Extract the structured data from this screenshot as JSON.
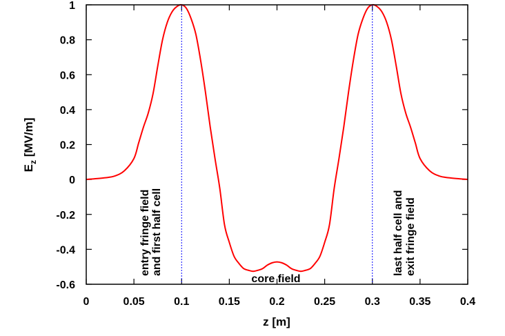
{
  "chart_data": {
    "type": "line",
    "xlabel": "z [m]",
    "ylabel_main": "E",
    "ylabel_sub": "z",
    "ylabel_rest": " [MV/m]",
    "xlim": [
      0,
      0.4
    ],
    "ylim": [
      -0.6,
      1
    ],
    "xticks": [
      "0",
      "0.05",
      "0.1",
      "0.15",
      "0.2",
      "0.25",
      "0.3",
      "0.35",
      "0.4"
    ],
    "xtick_values": [
      0,
      0.05,
      0.1,
      0.15,
      0.2,
      0.25,
      0.3,
      0.35,
      0.4
    ],
    "yticks": [
      "-0.6",
      "-0.4",
      "-0.2",
      "0",
      "0.2",
      "0.4",
      "0.6",
      "0.8",
      "1"
    ],
    "ytick_values": [
      -0.6,
      -0.4,
      -0.2,
      0,
      0.2,
      0.4,
      0.6,
      0.8,
      1
    ],
    "grid": false,
    "series": [
      {
        "color": "#ff0000",
        "x": [
          0,
          0.02,
          0.03,
          0.04,
          0.05,
          0.055,
          0.06,
          0.065,
          0.07,
          0.075,
          0.08,
          0.085,
          0.09,
          0.095,
          0.1,
          0.105,
          0.11,
          0.115,
          0.12,
          0.125,
          0.13,
          0.135,
          0.14,
          0.145,
          0.15,
          0.155,
          0.16,
          0.165,
          0.17,
          0.175,
          0.18,
          0.185,
          0.19,
          0.195,
          0.2,
          0.205,
          0.21,
          0.215,
          0.22,
          0.225,
          0.23,
          0.235,
          0.24,
          0.245,
          0.25,
          0.255,
          0.26,
          0.265,
          0.27,
          0.275,
          0.28,
          0.285,
          0.29,
          0.295,
          0.3,
          0.305,
          0.31,
          0.315,
          0.32,
          0.325,
          0.33,
          0.335,
          0.34,
          0.345,
          0.35,
          0.36,
          0.37,
          0.38,
          0.4
        ],
        "y": [
          0,
          0.01,
          0.02,
          0.05,
          0.12,
          0.21,
          0.3,
          0.38,
          0.49,
          0.65,
          0.8,
          0.9,
          0.96,
          0.99,
          1.0,
          0.98,
          0.92,
          0.83,
          0.68,
          0.5,
          0.3,
          0.12,
          -0.05,
          -0.26,
          -0.36,
          -0.44,
          -0.48,
          -0.51,
          -0.52,
          -0.526,
          -0.52,
          -0.51,
          -0.49,
          -0.477,
          -0.472,
          -0.477,
          -0.49,
          -0.51,
          -0.52,
          -0.526,
          -0.52,
          -0.51,
          -0.48,
          -0.44,
          -0.36,
          -0.26,
          -0.05,
          0.12,
          0.3,
          0.5,
          0.68,
          0.83,
          0.92,
          0.98,
          1.0,
          0.99,
          0.96,
          0.9,
          0.8,
          0.65,
          0.49,
          0.38,
          0.3,
          0.21,
          0.12,
          0.05,
          0.02,
          0.01,
          0
        ]
      }
    ],
    "vlines": [
      {
        "x": 0.1,
        "color": "#0000ff",
        "style": "dotted"
      },
      {
        "x": 0.3,
        "color": "#0000ff",
        "style": "dotted"
      }
    ],
    "annotations": {
      "entry_line1": "entry fringe field",
      "entry_line2": "and first half cell",
      "core": "core field",
      "exit_line1": "last half cell and",
      "exit_line2": "exit fringe field"
    }
  }
}
